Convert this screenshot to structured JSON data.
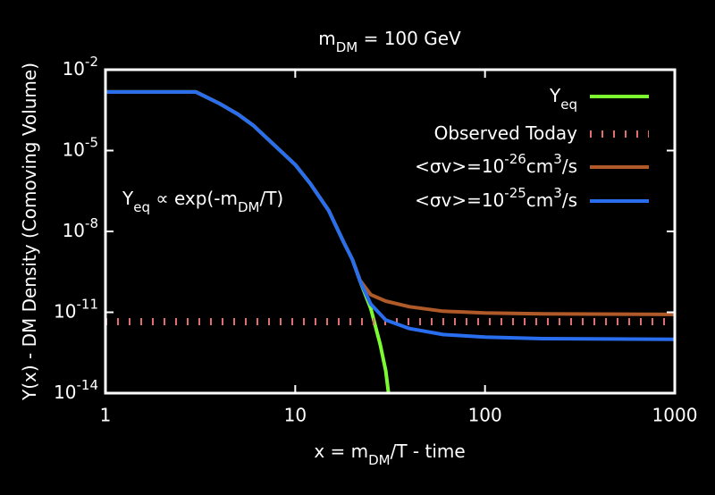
{
  "chart_data": {
    "type": "line",
    "title": [
      {
        "text": "m"
      },
      {
        "text": "DM",
        "sub": true
      },
      {
        "text": " = 100 GeV"
      }
    ],
    "x_label": [
      {
        "text": "x = m"
      },
      {
        "text": "DM",
        "sub": true
      },
      {
        "text": "/T - time"
      }
    ],
    "y_label": [
      {
        "text": "Y(x) - DM Density (Comoving Volume)"
      }
    ],
    "annotation": [
      {
        "text": "Y"
      },
      {
        "text": "eq",
        "sub": true
      },
      {
        "text": " ∝ exp(-m"
      },
      {
        "text": "DM",
        "sub": true
      },
      {
        "text": "/T)"
      }
    ],
    "xlog": true,
    "ylog": true,
    "xlim": [
      1,
      1000
    ],
    "ylim": [
      1e-14,
      0.01
    ],
    "xticks": [
      1,
      10,
      100,
      1000
    ],
    "yticks": [
      {
        "value": 0.01,
        "label": "10",
        "sup": "-2"
      },
      {
        "value": 1e-05,
        "label": "10",
        "sup": "-5"
      },
      {
        "value": 1e-08,
        "label": "10",
        "sup": "-8"
      },
      {
        "value": 1e-11,
        "label": "10",
        "sup": "-11"
      },
      {
        "value": 1e-14,
        "label": "10",
        "sup": "-14"
      }
    ],
    "legend": "top-right",
    "series": [
      {
        "name": [
          {
            "text": "Y"
          },
          {
            "text": "eq",
            "sub": true
          }
        ],
        "color": "#7cfc30",
        "dash": false,
        "x": [
          1,
          2,
          3,
          4,
          5,
          6,
          8,
          10,
          12,
          15,
          18,
          20,
          22,
          25,
          28,
          30,
          31
        ],
        "values": [
          0.0015,
          0.0015,
          0.0015,
          0.00055,
          0.00022,
          8.7e-05,
          1.3e-05,
          3e-06,
          6e-07,
          6e-08,
          4e-09,
          9e-10,
          1.4e-10,
          1.4e-11,
          6.6e-13,
          6.8e-14,
          1e-14
        ]
      },
      {
        "name": [
          {
            "text": "Observed Today"
          }
        ],
        "color": "#e07070",
        "dash": true,
        "x": [
          1,
          1000
        ],
        "values": [
          4.5e-12,
          4.5e-12
        ]
      },
      {
        "name": [
          {
            "text": "<σv>=10"
          },
          {
            "text": "-26",
            "sup": true
          },
          {
            "text": "cm"
          },
          {
            "text": "3",
            "sup": true
          },
          {
            "text": "/s"
          }
        ],
        "color": "#b05a2a",
        "dash": false,
        "x": [
          1,
          2,
          3,
          4,
          5,
          6,
          8,
          10,
          12,
          15,
          18,
          20,
          22,
          25,
          30,
          40,
          60,
          100,
          200,
          1000
        ],
        "values": [
          0.0015,
          0.0015,
          0.0015,
          0.00055,
          0.00022,
          8.7e-05,
          1.3e-05,
          3e-06,
          6e-07,
          6e-08,
          4e-09,
          9e-10,
          1.5e-10,
          4.5e-11,
          2.6e-11,
          1.6e-11,
          1.1e-11,
          9.5e-12,
          8.8e-12,
          8.3e-12
        ]
      },
      {
        "name": [
          {
            "text": "<σv>=10"
          },
          {
            "text": "-25",
            "sup": true
          },
          {
            "text": "cm"
          },
          {
            "text": "3",
            "sup": true
          },
          {
            "text": "/s"
          }
        ],
        "color": "#2a6ef0",
        "dash": false,
        "x": [
          1,
          2,
          3,
          4,
          5,
          6,
          8,
          10,
          12,
          15,
          18,
          20,
          22,
          25,
          30,
          40,
          60,
          100,
          200,
          1000
        ],
        "values": [
          0.0015,
          0.0015,
          0.0015,
          0.00055,
          0.00022,
          8.7e-05,
          1.3e-05,
          3e-06,
          6e-07,
          6e-08,
          4e-09,
          9e-10,
          1.4e-10,
          2e-11,
          5.2e-12,
          2.5e-12,
          1.5e-12,
          1.2e-12,
          1.05e-12,
          1e-12
        ]
      }
    ]
  }
}
